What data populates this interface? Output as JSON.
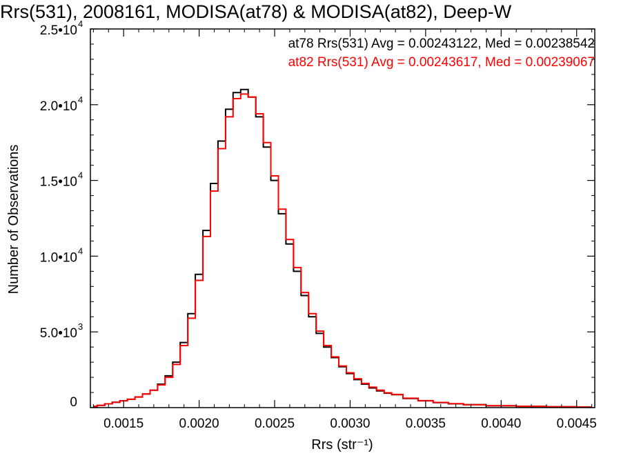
{
  "chart_data": {
    "type": "line",
    "step": true,
    "title": "Rrs(531), 2008161, MODISA(at78) & MODISA(at82), Deep-W",
    "xlabel": "Rrs (str⁻¹)",
    "ylabel": "Number of Observations",
    "xlim": [
      0.00128,
      0.00462
    ],
    "ylim": [
      0,
      25000
    ],
    "x_ticks": [
      0.0015,
      0.002,
      0.0025,
      0.003,
      0.0035,
      0.004,
      0.0045
    ],
    "x_tick_labels": [
      "0.0015",
      "0.0020",
      "0.0025",
      "0.0030",
      "0.0035",
      "0.0040",
      "0.0045"
    ],
    "y_ticks": [
      0,
      5000,
      10000,
      15000,
      20000,
      25000
    ],
    "y_tick_labels": [
      {
        "mantissa": "0",
        "exponent": ""
      },
      {
        "mantissa": "5.0•10",
        "exponent": "3"
      },
      {
        "mantissa": "1.0•10",
        "exponent": "4"
      },
      {
        "mantissa": "1.5•10",
        "exponent": "4"
      },
      {
        "mantissa": "2.0•10",
        "exponent": "4"
      },
      {
        "mantissa": "2.5•10",
        "exponent": "4"
      }
    ],
    "grid": false,
    "annotations": [
      {
        "text": "at78 Rrs(531) Avg = 0.00243122, Med = 0.00238542",
        "color": "#000000"
      },
      {
        "text": "at82 Rrs(531) Avg = 0.00243617, Med = 0.00239067",
        "color": "#ff0000"
      }
    ],
    "x": [
      0.0013,
      0.00135,
      0.0014,
      0.00145,
      0.0015,
      0.00155,
      0.0016,
      0.00165,
      0.0017,
      0.00175,
      0.0018,
      0.00185,
      0.0019,
      0.00195,
      0.002,
      0.00205,
      0.0021,
      0.00215,
      0.0022,
      0.00225,
      0.0023,
      0.00235,
      0.0024,
      0.00245,
      0.0025,
      0.00255,
      0.0026,
      0.00265,
      0.0027,
      0.00275,
      0.0028,
      0.00285,
      0.0029,
      0.00295,
      0.003,
      0.00305,
      0.0031,
      0.00315,
      0.0032,
      0.00325,
      0.0033,
      0.0034,
      0.0035,
      0.0036,
      0.0037,
      0.0038,
      0.004,
      0.0042,
      0.0044,
      0.0046
    ],
    "series": [
      {
        "color": "#000000",
        "values": [
          80,
          150,
          250,
          350,
          450,
          550,
          700,
          900,
          1150,
          1550,
          2100,
          3000,
          4300,
          6200,
          8800,
          11700,
          14800,
          17600,
          19700,
          20800,
          21000,
          20500,
          19200,
          17200,
          15000,
          12800,
          10800,
          9000,
          7400,
          6000,
          4900,
          4000,
          3300,
          2700,
          2250,
          1850,
          1550,
          1300,
          1100,
          950,
          850,
          600,
          450,
          330,
          250,
          190,
          120,
          80,
          55,
          40
        ]
      },
      {
        "color": "#ff0000",
        "values": [
          80,
          150,
          250,
          350,
          450,
          550,
          700,
          900,
          1150,
          1500,
          2000,
          2850,
          4100,
          5900,
          8400,
          11300,
          14300,
          17100,
          19200,
          20400,
          20700,
          20500,
          19400,
          17500,
          15300,
          13100,
          11100,
          9250,
          7600,
          6200,
          5050,
          4100,
          3350,
          2750,
          2300,
          1900,
          1600,
          1350,
          1150,
          980,
          870,
          620,
          460,
          340,
          260,
          195,
          125,
          85,
          58,
          42
        ]
      }
    ]
  }
}
